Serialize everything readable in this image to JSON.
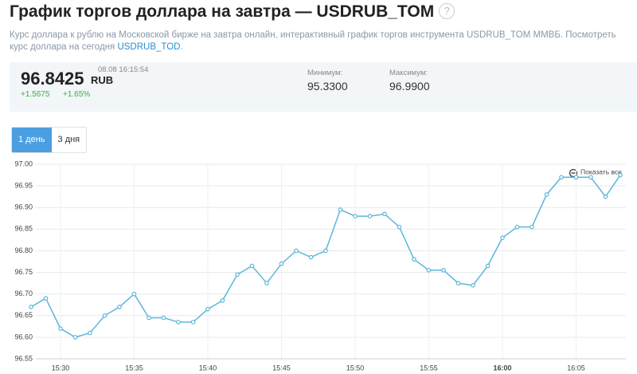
{
  "header": {
    "title": "График торгов доллара на завтра — USDRUB_TOM",
    "help": "?"
  },
  "description": {
    "text": "Курс доллара к рублю на Московской бирже на завтра онлайн, интерактивный график торгов инструмента USDRUB_TOM ММВБ. Посмотреть курс доллара на сегодня",
    "link": "USDRUB_TOD",
    "tail": "."
  },
  "quote": {
    "price": "96.8425",
    "currency": "RUB",
    "time": "08.08 16:15:54",
    "change": "+1.5675",
    "change_pct": "+1.65%",
    "min_label": "Минимум:",
    "min": "95.3300",
    "max_label": "Максимум:",
    "max": "96.9900"
  },
  "periods": [
    "1 день",
    "3 дня"
  ],
  "zoom": "Показать все",
  "chart_data": {
    "type": "line",
    "color": "#5cb6dc",
    "grid": true,
    "x": [
      "15:28",
      "15:29",
      "15:30",
      "15:31",
      "15:32",
      "15:33",
      "15:34",
      "15:35",
      "15:36",
      "15:37",
      "15:38",
      "15:39",
      "15:40",
      "15:41",
      "15:42",
      "15:43",
      "15:44",
      "15:45",
      "15:46",
      "15:47",
      "15:48",
      "15:49",
      "15:50",
      "15:51",
      "15:52",
      "15:53",
      "15:54",
      "15:55",
      "15:56",
      "15:57",
      "15:58",
      "15:59",
      "16:00",
      "16:01",
      "16:02",
      "16:03",
      "16:04",
      "16:05",
      "16:06",
      "16:07",
      "16:08"
    ],
    "values": [
      96.67,
      96.69,
      96.62,
      96.6,
      96.61,
      96.65,
      96.67,
      96.7,
      96.645,
      96.645,
      96.635,
      96.635,
      96.665,
      96.685,
      96.745,
      96.765,
      96.725,
      96.77,
      96.8,
      96.785,
      96.8,
      96.895,
      96.88,
      96.88,
      96.885,
      96.855,
      96.78,
      96.755,
      96.755,
      96.725,
      96.72,
      96.765,
      96.83,
      96.855,
      96.855,
      96.93,
      96.97,
      96.97,
      96.97,
      96.925,
      96.975
    ],
    "xlim": [
      "15:28",
      "16:08"
    ],
    "xticks": [
      "15:30",
      "15:35",
      "15:40",
      "15:45",
      "15:50",
      "15:55",
      "16:00",
      "16:05"
    ],
    "ylim": [
      96.55,
      97.0
    ],
    "yticks": [
      96.55,
      {
        "value": 96.6,
        "label": "96.60"
      },
      96.65,
      {
        "value": 96.7,
        "label": "96.70"
      },
      96.75,
      {
        "value": 96.8,
        "label": "96.80"
      },
      96.85,
      {
        "value": 96.9,
        "label": "96.90"
      },
      96.95,
      {
        "value": 97.0,
        "label": "97.00"
      }
    ]
  }
}
